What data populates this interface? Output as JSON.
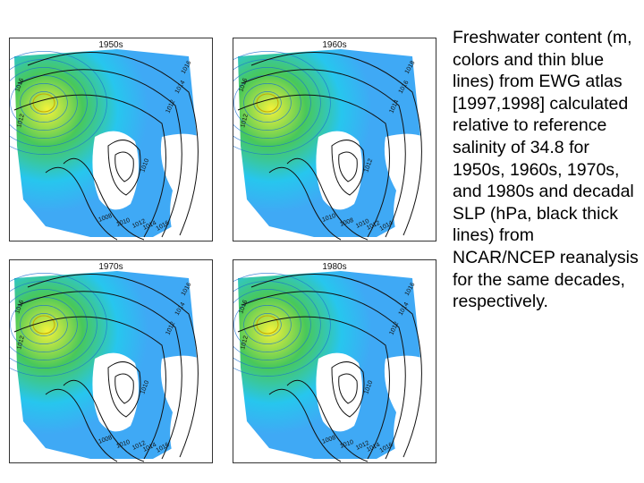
{
  "panels": [
    {
      "decade": "1950s",
      "labels": [
        "1016",
        "1014",
        "1012",
        "1010",
        "1008",
        "1010",
        "1012",
        "1014",
        "1016",
        "1016",
        "1012"
      ]
    },
    {
      "decade": "1960s",
      "labels": [
        "1018",
        "1016",
        "1014",
        "1012",
        "1010",
        "1008",
        "1010",
        "1012",
        "1014",
        "1016",
        "1012"
      ]
    },
    {
      "decade": "1970s",
      "labels": [
        "1016",
        "1014",
        "1012",
        "1010",
        "1008",
        "1010",
        "1012",
        "1014",
        "1016",
        "1016",
        "1012"
      ]
    },
    {
      "decade": "1980s",
      "labels": [
        "1016",
        "1014",
        "1012",
        "1010",
        "1008",
        "1010",
        "1012",
        "1014",
        "1016",
        "1016",
        "1012"
      ]
    }
  ],
  "caption": "Freshwater content (m, colors and thin blue lines) from EWG atlas [1997,1998] calculated relative to reference salinity of 34.8 for 1950s, 1960s, 1970s, and 1980s and decadal SLP (hPa, black thick lines) from NCAR/NCEP reanalysis for the same decades, respectively.",
  "colors": {
    "ocean_light": "#3fa9f5",
    "ocean_mid": "#27c6ee",
    "fresh_green": "#48c85a",
    "fresh_yellow": "#f4f23a",
    "land": "#ffffff"
  }
}
